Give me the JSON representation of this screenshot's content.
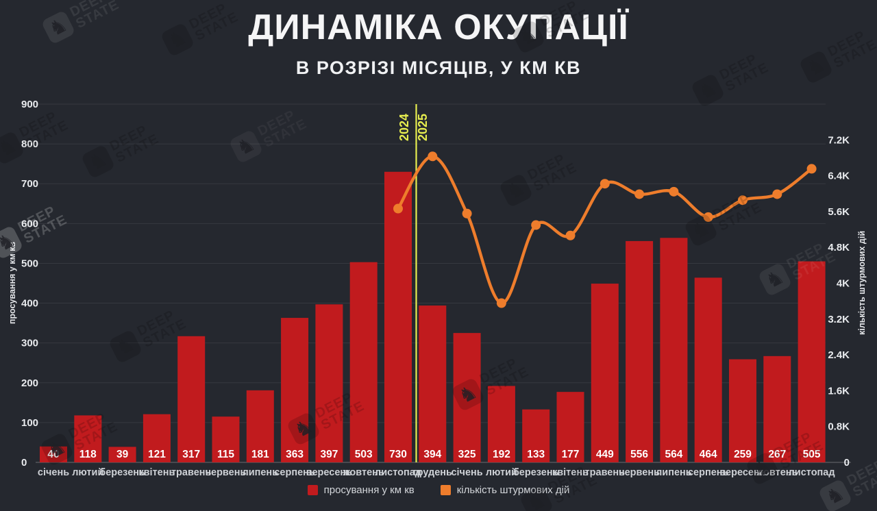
{
  "title": "ДИНАМІКА ОКУПАЦІЇ",
  "subtitle": "В РОЗРІЗІ МІСЯЦІВ, У КМ КВ",
  "watermark": {
    "icon": "knight-chess-icon",
    "line1": "DEEP",
    "line2": "STATE"
  },
  "legend": {
    "items": [
      {
        "label": "просування у км кв",
        "color": "#c11b1e"
      },
      {
        "label": "кількість штурмових дій",
        "color": "#ee7d2c"
      }
    ]
  },
  "colors": {
    "background": "#25282f",
    "bar": "#c11b1e",
    "line": "#ee7d2c",
    "year_divider": "#e6ed4f",
    "grid": "rgba(255,255,255,0.08)",
    "baseline": "rgba(255,255,255,0.32)",
    "tick_text": "#e9ebee",
    "month_text": "#ced1d6",
    "bar_value_text": "#ffffff",
    "axis_title_text": "#e3e5e8"
  },
  "chart_data": {
    "type": "bar+line",
    "title": "ДИНАМІКА ОКУПАЦІЇ",
    "subtitle": "В РОЗРІЗІ МІСЯЦІВ, У КМ КВ",
    "categories": [
      "січень",
      "лютий",
      "березень",
      "квітень",
      "травень",
      "червень",
      "липень",
      "серпень",
      "вересень",
      "жовтень",
      "листопад",
      "грудень",
      "січень",
      "лютий",
      "березень",
      "квітень",
      "травень",
      "червень",
      "липень",
      "серпень",
      "вересень",
      "жовтень",
      "листопад"
    ],
    "series": [
      {
        "name": "просування у км кв",
        "type": "bar",
        "axis": "left",
        "color": "#c11b1e",
        "values": [
          40,
          118,
          39,
          121,
          317,
          115,
          181,
          363,
          397,
          503,
          730,
          394,
          325,
          192,
          133,
          177,
          449,
          556,
          564,
          464,
          259,
          267,
          505
        ]
      },
      {
        "name": "кількість штурмових дій",
        "type": "line",
        "axis": "right",
        "color": "#ee7d2c",
        "start_index": 10,
        "values": [
          5100,
          6150,
          5000,
          3200,
          4770,
          4560,
          5600,
          5390,
          5440,
          4930,
          5270,
          5390,
          5900
        ]
      }
    ],
    "left_axis": {
      "label": "просування у км кв",
      "max": 900,
      "ticks": [
        "0",
        "100",
        "200",
        "300",
        "400",
        "500",
        "600",
        "700",
        "800",
        "900"
      ]
    },
    "right_axis": {
      "label": "кількість штурмових дій",
      "max": 7200,
      "ticks": [
        "0",
        "0.8K",
        "1.6K",
        "2.4K",
        "3.2K",
        "4K",
        "4.8K",
        "5.6K",
        "6.4K",
        "7.2K"
      ]
    },
    "year_divider": {
      "after_category_index": 10,
      "left_label": "2024",
      "right_label": "2025",
      "color": "#e6ed4f"
    },
    "grid": true,
    "legend_position": "bottom"
  }
}
